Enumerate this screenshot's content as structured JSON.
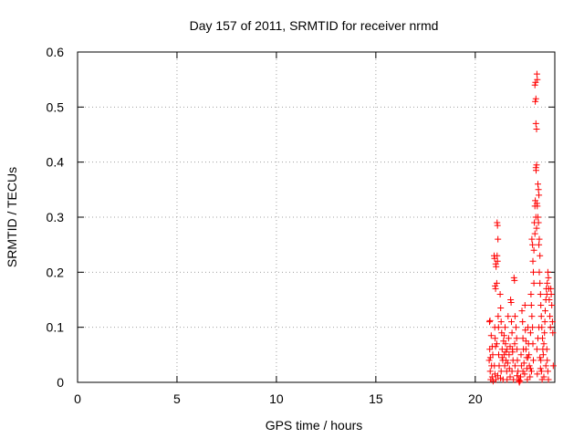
{
  "chart_data": {
    "type": "scatter",
    "title": "Day 157 of 2011, SRMTID for receiver nrmd",
    "xlabel": "GPS time / hours",
    "ylabel": "SRMTID / TECUs",
    "xlim": [
      0,
      24
    ],
    "ylim": [
      0,
      0.6
    ],
    "xticks": [
      "0",
      "5",
      "10",
      "15",
      "20"
    ],
    "xtick_values": [
      0,
      5,
      10,
      15,
      20
    ],
    "yticks": [
      "0",
      "0.1",
      "0.2",
      "0.3",
      "0.4",
      "0.5",
      "0.6"
    ],
    "ytick_values": [
      0,
      0.1,
      0.2,
      0.3,
      0.4,
      0.5,
      0.6
    ],
    "grid": true,
    "marker": "+",
    "series_color": "#ff0000",
    "series": [
      {
        "values": [
          [
            20.72,
            0.11
          ],
          [
            20.74,
            0.112
          ],
          [
            20.7,
            0.04
          ],
          [
            20.73,
            0.06
          ],
          [
            20.75,
            0.02
          ],
          [
            20.78,
            0.005
          ],
          [
            20.8,
            0.085
          ],
          [
            20.82,
            0.03
          ],
          [
            20.85,
            0.01
          ],
          [
            20.88,
            0.05
          ],
          [
            20.9,
            0.002
          ],
          [
            20.76,
            0.045
          ],
          [
            20.95,
            0.23
          ],
          [
            20.97,
            0.225
          ],
          [
            21.0,
            0.175
          ],
          [
            21.02,
            0.17
          ],
          [
            21.05,
            0.21
          ],
          [
            21.03,
            0.215
          ],
          [
            20.98,
            0.1
          ],
          [
            21.0,
            0.08
          ],
          [
            21.02,
            0.065
          ],
          [
            20.96,
            0.03
          ],
          [
            20.99,
            0.015
          ],
          [
            21.04,
            0.005
          ],
          [
            21.08,
            0.18
          ],
          [
            21.1,
            0.29
          ],
          [
            21.12,
            0.285
          ],
          [
            21.14,
            0.26
          ],
          [
            21.1,
            0.23
          ],
          [
            21.12,
            0.22
          ],
          [
            21.15,
            0.12
          ],
          [
            21.17,
            0.1
          ],
          [
            21.08,
            0.07
          ],
          [
            21.18,
            0.05
          ],
          [
            21.2,
            0.03
          ],
          [
            21.13,
            0.012
          ],
          [
            21.25,
            0.16
          ],
          [
            21.28,
            0.135
          ],
          [
            21.3,
            0.11
          ],
          [
            21.33,
            0.09
          ],
          [
            21.35,
            0.06
          ],
          [
            21.38,
            0.04
          ],
          [
            21.3,
            0.02
          ],
          [
            21.4,
            0.005
          ],
          [
            21.42,
            0.075
          ],
          [
            21.45,
            0.05
          ],
          [
            21.48,
            0.03
          ],
          [
            21.27,
            0.008
          ],
          [
            21.5,
            0.1
          ],
          [
            21.52,
            0.07
          ],
          [
            21.55,
            0.04
          ],
          [
            21.58,
            0.02
          ],
          [
            21.6,
            0.005
          ],
          [
            21.53,
            0.055
          ],
          [
            21.65,
            0.12
          ],
          [
            21.68,
            0.08
          ],
          [
            21.7,
            0.05
          ],
          [
            21.72,
            0.025
          ],
          [
            21.75,
            0.01
          ],
          [
            21.63,
            0.035
          ],
          [
            21.78,
            0.15
          ],
          [
            21.8,
            0.145
          ],
          [
            21.82,
            0.11
          ],
          [
            21.85,
            0.09
          ],
          [
            21.87,
            0.06
          ],
          [
            21.9,
            0.04
          ],
          [
            21.85,
            0.02
          ],
          [
            21.92,
            0.005
          ],
          [
            21.95,
            0.19
          ],
          [
            21.97,
            0.185
          ],
          [
            22.0,
            0.12
          ],
          [
            21.98,
            0.07
          ],
          [
            22.05,
            0.1
          ],
          [
            22.08,
            0.08
          ],
          [
            22.1,
            0.06
          ],
          [
            22.12,
            0.04
          ],
          [
            22.15,
            0.02
          ],
          [
            22.18,
            0.005
          ],
          [
            22.2,
            0.002
          ],
          [
            22.22,
            0.0
          ],
          [
            22.25,
            0.003
          ],
          [
            22.28,
            0.01
          ],
          [
            22.3,
            0.05
          ],
          [
            22.32,
            0.03
          ],
          [
            22.35,
            0.13
          ],
          [
            22.38,
            0.11
          ],
          [
            22.4,
            0.08
          ],
          [
            22.42,
            0.06
          ],
          [
            22.45,
            0.035
          ],
          [
            22.48,
            0.015
          ],
          [
            22.5,
            0.14
          ],
          [
            22.52,
            0.095
          ],
          [
            22.55,
            0.075
          ],
          [
            22.58,
            0.045
          ],
          [
            22.6,
            0.025
          ],
          [
            22.62,
            0.005
          ],
          [
            22.65,
            0.1
          ],
          [
            22.68,
            0.07
          ],
          [
            22.7,
            0.05
          ],
          [
            22.72,
            0.03
          ],
          [
            22.75,
            0.01
          ],
          [
            22.78,
            0.09
          ],
          [
            22.8,
            0.16
          ],
          [
            22.82,
            0.14
          ],
          [
            22.85,
            0.12
          ],
          [
            22.88,
            0.1
          ],
          [
            22.9,
            0.07
          ],
          [
            22.92,
            0.04
          ],
          [
            22.85,
            0.26
          ],
          [
            22.88,
            0.25
          ],
          [
            22.9,
            0.22
          ],
          [
            22.92,
            0.2
          ],
          [
            22.95,
            0.18
          ],
          [
            22.83,
            0.02
          ],
          [
            22.95,
            0.24
          ],
          [
            22.97,
            0.29
          ],
          [
            23.0,
            0.32
          ],
          [
            23.02,
            0.33
          ],
          [
            23.05,
            0.3
          ],
          [
            23.0,
            0.27
          ],
          [
            23.05,
            0.39
          ],
          [
            23.08,
            0.395
          ],
          [
            23.06,
            0.385
          ],
          [
            23.1,
            0.325
          ],
          [
            23.12,
            0.32
          ],
          [
            23.08,
            0.28
          ],
          [
            23.05,
            0.47
          ],
          [
            23.08,
            0.46
          ],
          [
            23.02,
            0.51
          ],
          [
            23.05,
            0.515
          ],
          [
            23.0,
            0.54
          ],
          [
            23.03,
            0.545
          ],
          [
            23.1,
            0.56
          ],
          [
            23.12,
            0.55
          ],
          [
            23.15,
            0.36
          ],
          [
            23.18,
            0.35
          ],
          [
            23.2,
            0.34
          ],
          [
            23.15,
            0.3
          ],
          [
            23.18,
            0.29
          ],
          [
            23.22,
            0.26
          ],
          [
            23.2,
            0.25
          ],
          [
            23.25,
            0.23
          ],
          [
            23.22,
            0.2
          ],
          [
            23.25,
            0.18
          ],
          [
            23.28,
            0.16
          ],
          [
            23.3,
            0.14
          ],
          [
            23.32,
            0.12
          ],
          [
            23.35,
            0.1
          ],
          [
            23.38,
            0.08
          ],
          [
            23.4,
            0.06
          ],
          [
            23.3,
            0.04
          ],
          [
            23.33,
            0.02
          ],
          [
            23.36,
            0.005
          ],
          [
            23.42,
            0.05
          ],
          [
            23.45,
            0.07
          ],
          [
            23.48,
            0.09
          ],
          [
            23.5,
            0.11
          ],
          [
            23.52,
            0.13
          ],
          [
            23.55,
            0.15
          ],
          [
            23.58,
            0.17
          ],
          [
            23.6,
            0.16
          ],
          [
            23.62,
            0.18
          ],
          [
            23.65,
            0.2
          ],
          [
            23.68,
            0.19
          ],
          [
            23.7,
            0.17
          ],
          [
            23.72,
            0.15
          ],
          [
            23.75,
            0.12
          ],
          [
            23.78,
            0.1
          ],
          [
            23.8,
            0.17
          ],
          [
            23.82,
            0.16
          ],
          [
            23.85,
            0.14
          ],
          [
            23.88,
            0.11
          ],
          [
            23.9,
            0.09
          ],
          [
            23.92,
            0.03
          ],
          [
            23.6,
            0.06
          ],
          [
            23.62,
            0.04
          ],
          [
            23.65,
            0.02
          ],
          [
            23.68,
            0.005
          ],
          [
            23.55,
            0.03
          ],
          [
            23.45,
            0.01
          ],
          [
            23.1,
            0.06
          ],
          [
            23.15,
            0.08
          ],
          [
            23.2,
            0.1
          ],
          [
            23.25,
            0.045
          ],
          [
            23.28,
            0.025
          ],
          [
            23.12,
            0.015
          ],
          [
            21.35,
            0.045
          ],
          [
            21.6,
            0.06
          ],
          [
            21.88,
            0.055
          ],
          [
            22.1,
            0.012
          ],
          [
            22.4,
            0.02
          ],
          [
            22.65,
            0.045
          ],
          [
            20.85,
            0.065
          ],
          [
            21.45,
            0.085
          ],
          [
            21.75,
            0.065
          ],
          [
            22.0,
            0.03
          ],
          [
            22.55,
            0.06
          ],
          [
            22.78,
            0.025
          ]
        ]
      }
    ]
  }
}
